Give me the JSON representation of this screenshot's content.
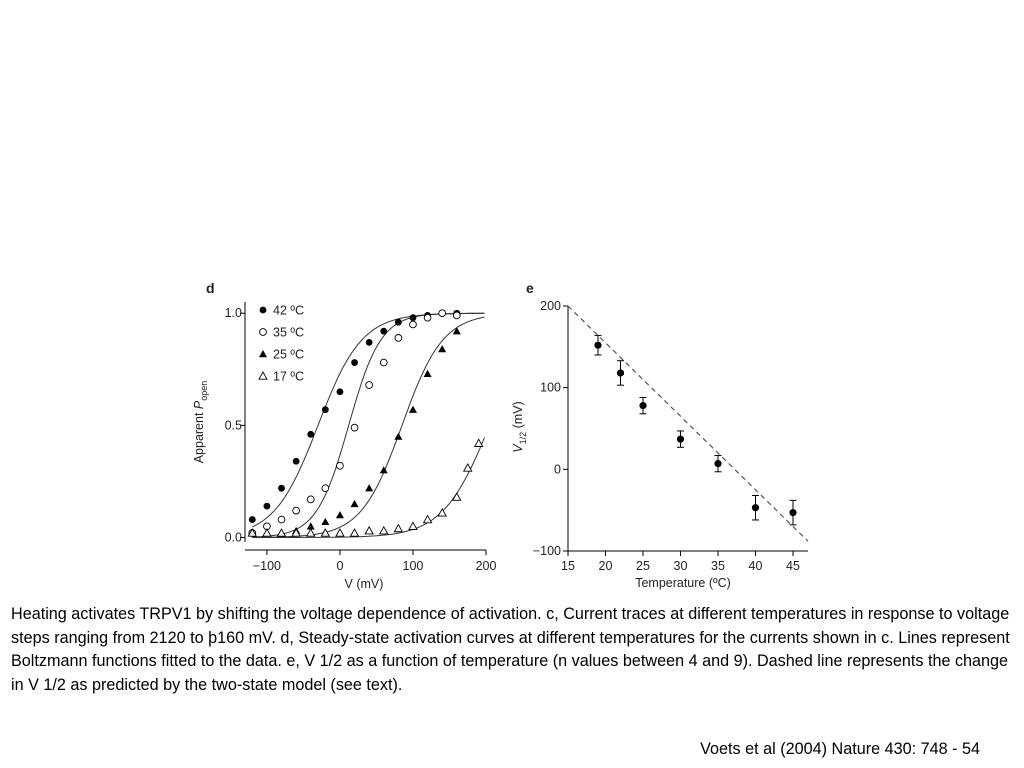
{
  "caption": "Heating activates TRPV1 by shifting the voltage dependence of activation. c, Current traces at different temperatures in response to voltage steps ranging from 2120 to þ160 mV. d, Steady-state activation curves at different temperatures for the currents shown in c. Lines represent Boltzmann functions fitted to the data. e, V 1/2 as a function of temperature (n values between 4 and 9). Dashed line represents the change in V 1/2 as predicted by the two-state model (see text).",
  "citation": "Voets et al (2004) Nature 430: 748 - 54",
  "chart_data": [
    {
      "panel": "d",
      "type": "scatter",
      "xlabel": "V (mV)",
      "ylabel": "Apparent P open",
      "ylabel_main": "Apparent ",
      "ylabel_italic": "P",
      "ylabel_sub": "open",
      "xlim": [
        -130,
        200
      ],
      "ylim": [
        -0.02,
        1.05
      ],
      "x_ticks": [
        -100,
        0,
        100,
        200
      ],
      "x_tick_labels": [
        "−100",
        "0",
        "100",
        "200"
      ],
      "y_ticks": [
        0.0,
        0.5,
        1.0
      ],
      "y_tick_labels": [
        "0.0",
        "0.5",
        "1.0"
      ],
      "legend_position": "top-left",
      "fit": "Boltzmann",
      "x": [
        -120,
        -100,
        -80,
        -60,
        -40,
        -20,
        0,
        20,
        40,
        60,
        80,
        100,
        120,
        140,
        160
      ],
      "series": [
        {
          "name": "42 ºC",
          "marker": "filled-circle",
          "values": [
            0.08,
            0.14,
            0.22,
            0.34,
            0.46,
            0.57,
            0.65,
            0.78,
            0.87,
            0.92,
            0.96,
            0.98,
            0.99,
            1.0,
            1.0
          ],
          "fit_v_half": -30,
          "fit_slope": 30
        },
        {
          "name": "35 ºC",
          "marker": "open-circle",
          "values": [
            0.02,
            0.05,
            0.08,
            0.12,
            0.17,
            0.22,
            0.32,
            0.49,
            0.68,
            0.78,
            0.89,
            0.95,
            0.98,
            1.0,
            0.99
          ],
          "fit_v_half": 12,
          "fit_slope": 22
        },
        {
          "name": "25 ºC",
          "marker": "filled-triangle",
          "values": [
            null,
            0.02,
            0.02,
            0.03,
            0.05,
            0.07,
            0.1,
            0.15,
            0.22,
            0.3,
            0.45,
            0.57,
            0.73,
            0.84,
            0.92
          ],
          "fit_v_half": 85,
          "fit_slope": 28
        },
        {
          "name": "17 ºC",
          "marker": "open-triangle",
          "values": [
            0.02,
            0.02,
            0.02,
            0.02,
            0.02,
            0.02,
            0.02,
            0.02,
            0.03,
            0.03,
            0.04,
            0.05,
            0.08,
            0.11,
            0.18,
            0.31,
            0.42
          ],
          "x_override": [
            -120,
            -100,
            -80,
            -60,
            -40,
            -20,
            0,
            20,
            40,
            60,
            80,
            100,
            120,
            140,
            160,
            175,
            190
          ],
          "fit_v_half": 205,
          "fit_slope": 32
        }
      ]
    },
    {
      "panel": "e",
      "type": "scatter",
      "xlabel": "Temperature (ºC)",
      "ylabel": "V 1/2 (mV)",
      "ylabel_italic": "V",
      "ylabel_sub": "1/2",
      "ylabel_rest": " (mV)",
      "xlim": [
        15,
        47
      ],
      "ylim": [
        -100,
        200
      ],
      "x_ticks": [
        15,
        20,
        25,
        30,
        35,
        40,
        45
      ],
      "x_tick_labels": [
        "15",
        "20",
        "25",
        "30",
        "35",
        "40",
        "45"
      ],
      "y_ticks": [
        -100,
        0,
        100,
        200
      ],
      "y_tick_labels": [
        "−100",
        "0",
        "100",
        "200"
      ],
      "x": [
        19,
        22,
        25,
        30,
        35,
        40,
        45
      ],
      "values": [
        152,
        118,
        78,
        37,
        7,
        -47,
        -53
      ],
      "errors": [
        12,
        15,
        10,
        10,
        10,
        15,
        15
      ],
      "model_line": {
        "style": "dashed",
        "x": [
          15,
          47
        ],
        "y": [
          200,
          -88
        ]
      }
    }
  ]
}
